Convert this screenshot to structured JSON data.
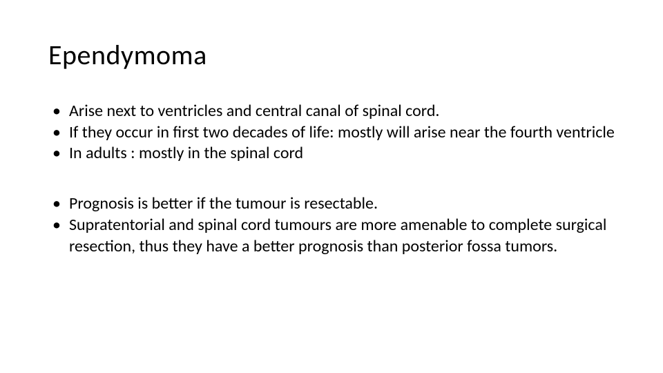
{
  "slide": {
    "title": "Ependymoma",
    "group1": {
      "b1": "Arise next to ventricles and central canal of spinal cord.",
      "b2": "If they occur in first two decades of life: mostly will arise near the fourth ventricle",
      "b3": "In adults : mostly in the spinal cord"
    },
    "group2": {
      "b1": "Prognosis is better if the tumour is resectable.",
      "b2": "Supratentorial and spinal cord tumours are more amenable to complete surgical resection, thus they have a better prognosis than posterior fossa tumors."
    },
    "style": {
      "background_color": "#ffffff",
      "text_color": "#000000",
      "title_fontsize": 40,
      "body_fontsize": 24,
      "font_family": "Calibri"
    }
  }
}
